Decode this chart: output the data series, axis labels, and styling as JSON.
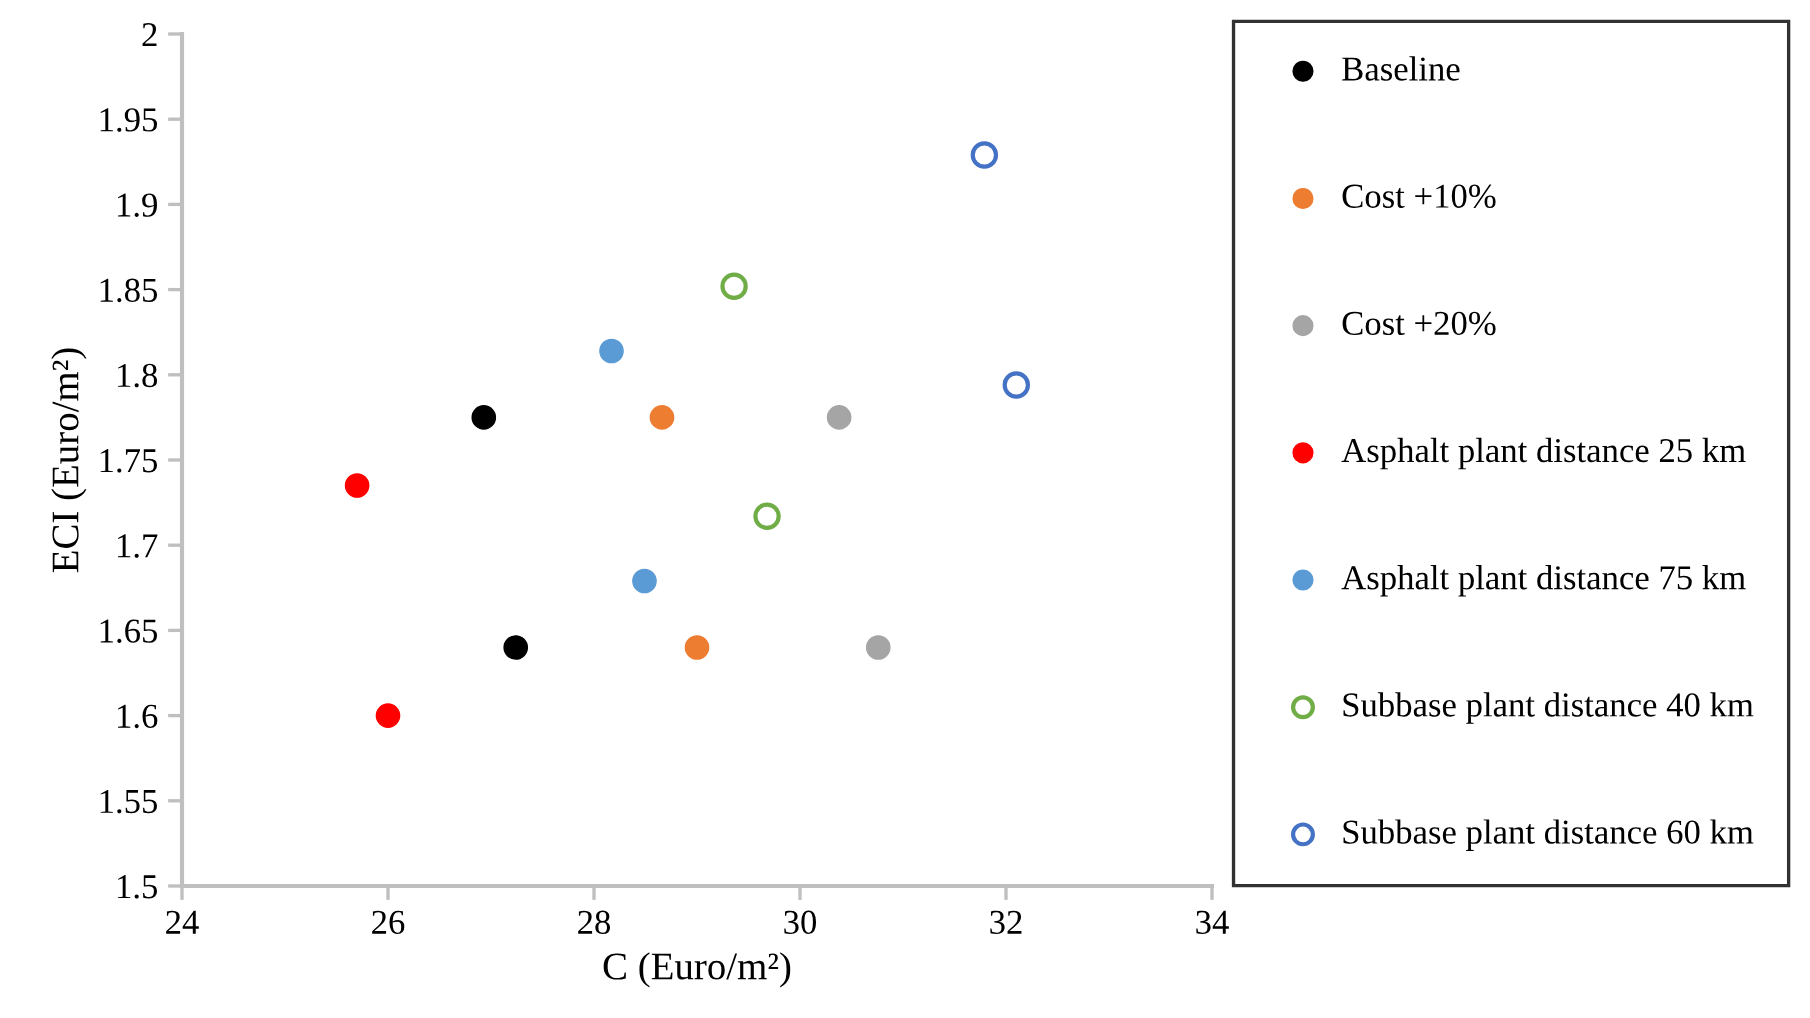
{
  "chart_data": {
    "type": "scatter",
    "xlabel": "C (Euro/m²)",
    "ylabel": "ECI (Euro/m²)",
    "xlim": [
      24,
      34
    ],
    "xticks": [
      24,
      26,
      28,
      30,
      32,
      34
    ],
    "ylim": [
      1.5,
      2
    ],
    "yticks": [
      1.5,
      1.55,
      1.6,
      1.65,
      1.7,
      1.75,
      1.8,
      1.85,
      1.9,
      1.95,
      2
    ],
    "grid": false,
    "legend": "right",
    "marker": "circle",
    "series": [
      {
        "name": "Baseline",
        "color": "#000000",
        "x": [
          26.93,
          27.24
        ],
        "values": [
          1.775,
          1.64
        ]
      },
      {
        "name": "Cost +10%",
        "color": "#ed7d31",
        "x": [
          28.66,
          29.0
        ],
        "values": [
          1.775,
          1.64
        ]
      },
      {
        "name": "Cost +20%",
        "color": "#a5a5a5",
        "x": [
          30.38,
          30.76
        ],
        "values": [
          1.775,
          1.64
        ]
      },
      {
        "name": "Asphalt plant distance 25 km",
        "color": "#ff0000",
        "x": [
          25.7,
          26.0
        ],
        "values": [
          1.735,
          1.6
        ]
      },
      {
        "name": "Asphalt plant distance 75 km",
        "color": "#5b9bd5",
        "x": [
          28.17,
          28.49
        ],
        "values": [
          1.814,
          1.679
        ]
      },
      {
        "name": "Subbase plant distance 40 km",
        "color": "#70ad47",
        "marker": "circle-open",
        "x": [
          29.36,
          29.68
        ],
        "values": [
          1.852,
          1.717
        ]
      },
      {
        "name": "Subbase plant distance 60 km",
        "color": "#4472c4",
        "marker": "circle-open",
        "x": [
          31.79,
          32.1
        ],
        "values": [
          1.929,
          1.794
        ]
      }
    ]
  }
}
